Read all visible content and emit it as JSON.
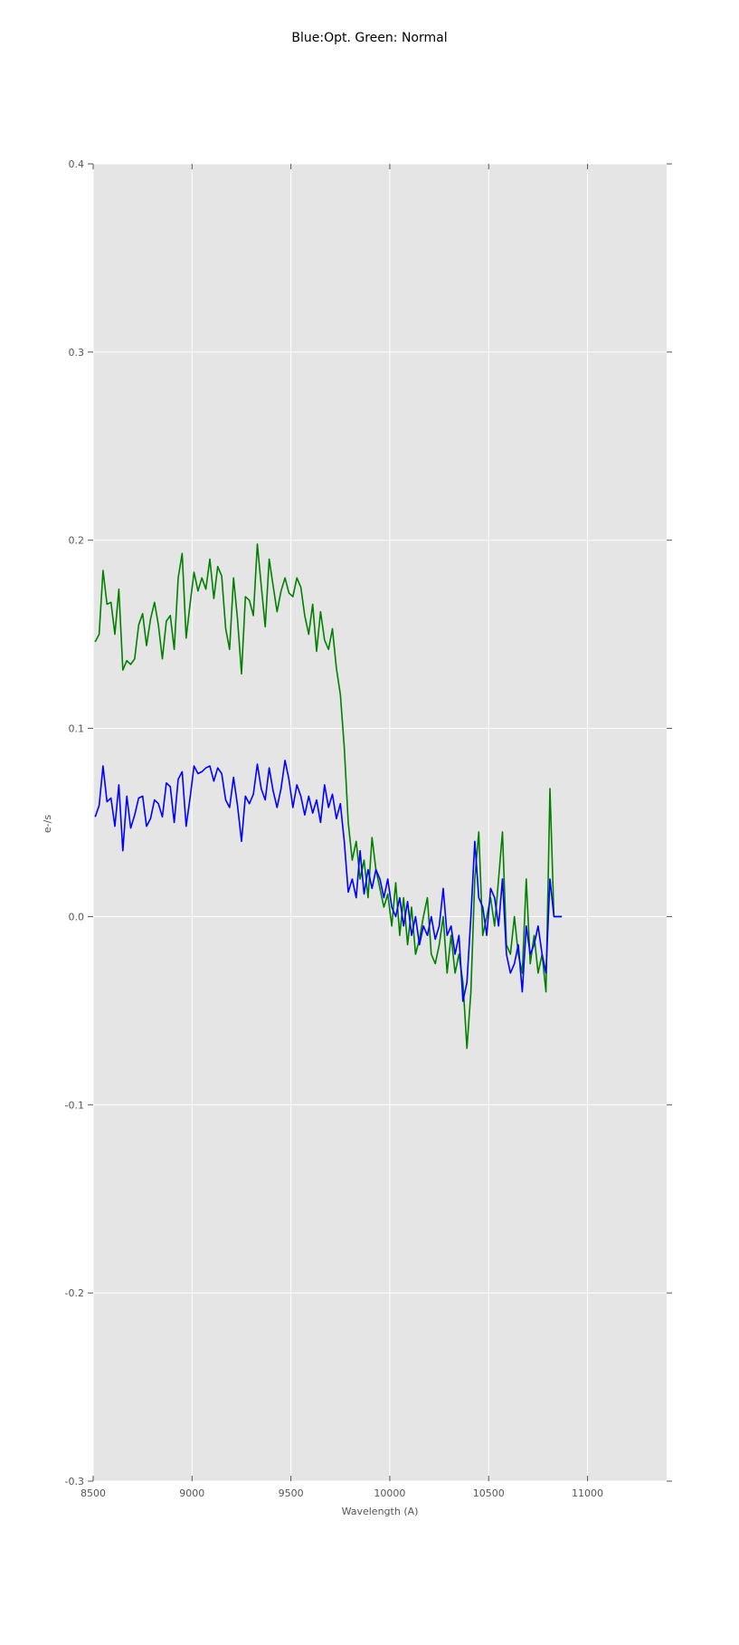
{
  "chart_data": {
    "type": "line",
    "title": "Blue:Opt. Green: Normal",
    "xlabel": "Wavelength (A)",
    "ylabel": "e-/s",
    "xlim": [
      8500,
      11400
    ],
    "ylim": [
      -0.3,
      0.4
    ],
    "xticks": [
      8500,
      9000,
      9500,
      10000,
      10500,
      11000
    ],
    "yticks": [
      -0.3,
      -0.2,
      -0.1,
      0.0,
      0.1,
      0.2,
      0.3,
      0.4
    ],
    "grid": true,
    "legend": "none",
    "background_color": "#e5e5e5",
    "x_start": 8510,
    "x_step": 20,
    "series": [
      {
        "color": "#008000",
        "values": [
          0.146,
          0.15,
          0.184,
          0.166,
          0.167,
          0.15,
          0.174,
          0.131,
          0.136,
          0.134,
          0.137,
          0.155,
          0.161,
          0.144,
          0.158,
          0.167,
          0.155,
          0.137,
          0.157,
          0.16,
          0.142,
          0.18,
          0.193,
          0.148,
          0.166,
          0.183,
          0.173,
          0.18,
          0.174,
          0.19,
          0.169,
          0.186,
          0.181,
          0.153,
          0.142,
          0.18,
          0.158,
          0.129,
          0.17,
          0.168,
          0.16,
          0.198,
          0.176,
          0.154,
          0.19,
          0.176,
          0.162,
          0.173,
          0.18,
          0.172,
          0.17,
          0.18,
          0.175,
          0.16,
          0.15,
          0.166,
          0.141,
          0.162,
          0.147,
          0.142,
          0.153,
          0.132,
          0.118,
          0.09,
          0.05,
          0.03,
          0.04,
          0.02,
          0.03,
          0.01,
          0.042,
          0.025,
          0.015,
          0.005,
          0.012,
          -0.005,
          0.018,
          -0.01,
          0.01,
          -0.015,
          0.005,
          -0.02,
          -0.012,
          0.0,
          0.01,
          -0.02,
          -0.025,
          -0.015,
          0.0,
          -0.03,
          -0.01,
          -0.03,
          -0.02,
          -0.035,
          -0.07,
          -0.04,
          0.02,
          0.045,
          -0.01,
          0.0,
          0.01,
          -0.005,
          0.02,
          0.045,
          -0.015,
          -0.02,
          0.0,
          -0.02,
          -0.03,
          0.02,
          -0.025,
          -0.01,
          -0.03,
          -0.02,
          -0.04,
          0.068,
          0.0,
          0.0,
          0.0
        ]
      },
      {
        "color": "#0000ff",
        "values": [
          0.053,
          0.059,
          0.08,
          0.061,
          0.063,
          0.048,
          0.07,
          0.035,
          0.064,
          0.047,
          0.054,
          0.063,
          0.064,
          0.048,
          0.052,
          0.062,
          0.06,
          0.053,
          0.071,
          0.069,
          0.05,
          0.073,
          0.077,
          0.048,
          0.063,
          0.08,
          0.076,
          0.077,
          0.079,
          0.08,
          0.072,
          0.079,
          0.076,
          0.062,
          0.058,
          0.074,
          0.059,
          0.04,
          0.064,
          0.06,
          0.065,
          0.081,
          0.068,
          0.062,
          0.079,
          0.067,
          0.058,
          0.068,
          0.083,
          0.073,
          0.058,
          0.07,
          0.064,
          0.054,
          0.064,
          0.055,
          0.062,
          0.05,
          0.07,
          0.058,
          0.065,
          0.052,
          0.06,
          0.04,
          0.013,
          0.02,
          0.01,
          0.035,
          0.012,
          0.025,
          0.015,
          0.025,
          0.02,
          0.01,
          0.02,
          0.005,
          0.0,
          0.01,
          -0.005,
          0.008,
          -0.01,
          0.0,
          -0.015,
          -0.005,
          -0.01,
          0.0,
          -0.012,
          -0.005,
          0.015,
          -0.01,
          -0.005,
          -0.02,
          -0.01,
          -0.045,
          -0.035,
          0.0,
          0.04,
          0.01,
          0.005,
          -0.01,
          0.015,
          0.01,
          -0.005,
          0.02,
          -0.02,
          -0.03,
          -0.025,
          -0.015,
          -0.04,
          -0.005,
          -0.02,
          -0.015,
          -0.005,
          -0.02,
          -0.03,
          0.02,
          0.0,
          0.0,
          0.0
        ]
      }
    ]
  }
}
